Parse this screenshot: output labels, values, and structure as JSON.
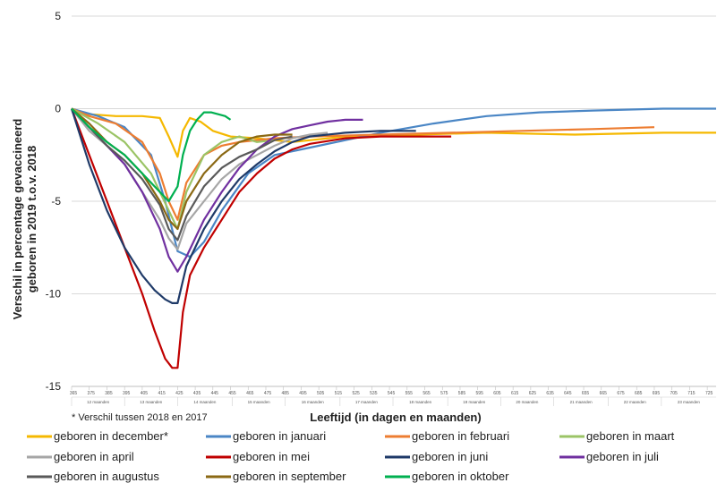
{
  "chart_data": {
    "type": "line",
    "ylabel_line1": "Verschil in percentage gevaccineerd",
    "ylabel_line2": "geboren in 2019 t.o.v. 2018",
    "xlabel": "Leeftijd (in dagen en maanden)",
    "footnote": "* Verschil tussen 2018 en 2017",
    "ylim": [
      -15,
      5
    ],
    "yticks": [
      5,
      0,
      -5,
      -10,
      -15
    ],
    "xlim": [
      365,
      730
    ],
    "day_ticks": [
      "365",
      "375",
      "385",
      "395",
      "405",
      "415",
      "425",
      "435",
      "445",
      "455",
      "465",
      "475",
      "485",
      "495",
      "505",
      "515",
      "525",
      "535",
      "545",
      "555",
      "565",
      "575",
      "585",
      "595",
      "605",
      "615",
      "625",
      "635",
      "645",
      "655",
      "665",
      "675",
      "685",
      "695",
      "705",
      "715",
      "725"
    ],
    "month_labels": [
      {
        "label": "12 maanden",
        "from": 365,
        "to": 395
      },
      {
        "label": "13 maanden",
        "from": 395,
        "to": 425
      },
      {
        "label": "14 maanden",
        "from": 425,
        "to": 456
      },
      {
        "label": "15 maanden",
        "from": 456,
        "to": 486
      },
      {
        "label": "16 maanden",
        "from": 486,
        "to": 517
      },
      {
        "label": "17 maanden",
        "from": 517,
        "to": 547
      },
      {
        "label": "18 maanden",
        "from": 547,
        "to": 578
      },
      {
        "label": "19 maanden",
        "from": 578,
        "to": 608
      },
      {
        "label": "20 maanden",
        "from": 608,
        "to": 638
      },
      {
        "label": "21 maanden",
        "from": 638,
        "to": 669
      },
      {
        "label": "22 maanden",
        "from": 669,
        "to": 699
      },
      {
        "label": "23 maanden",
        "from": 699,
        "to": 730
      }
    ],
    "grid": "horizontal",
    "legend_position": "bottom",
    "series": [
      {
        "name": "geboren in december*",
        "color": "#F5B800",
        "x": [
          365,
          375,
          390,
          405,
          415,
          420,
          425,
          428,
          432,
          438,
          445,
          455,
          470,
          490,
          520,
          560,
          600,
          650,
          700,
          730
        ],
        "y": [
          0,
          -0.3,
          -0.4,
          -0.4,
          -0.5,
          -1.5,
          -2.6,
          -1.2,
          -0.5,
          -0.7,
          -1.2,
          -1.5,
          -1.6,
          -1.8,
          -1.5,
          -1.4,
          -1.3,
          -1.4,
          -1.3,
          -1.3
        ]
      },
      {
        "name": "geboren in januari",
        "color": "#4A86C5",
        "x": [
          365,
          380,
          395,
          410,
          418,
          425,
          432,
          440,
          450,
          465,
          480,
          500,
          520,
          540,
          570,
          600,
          630,
          660,
          700,
          730
        ],
        "y": [
          0,
          -0.4,
          -1.0,
          -2.5,
          -5,
          -7.7,
          -8.0,
          -7.2,
          -5.5,
          -3.5,
          -2.5,
          -2.1,
          -1.7,
          -1.3,
          -0.8,
          -0.4,
          -0.2,
          -0.1,
          0,
          0
        ]
      },
      {
        "name": "geboren in februari",
        "color": "#ED7D31",
        "x": [
          365,
          375,
          390,
          405,
          415,
          420,
          425,
          430,
          440,
          450,
          460,
          480,
          500,
          540,
          580,
          620,
          660,
          695
        ],
        "y": [
          0,
          -0.4,
          -0.8,
          -1.8,
          -3.5,
          -5,
          -6,
          -4,
          -2.5,
          -2,
          -1.8,
          -1.6,
          -1.5,
          -1.4,
          -1.3,
          -1.2,
          -1.1,
          -1.0
        ]
      },
      {
        "name": "geboren in maart",
        "color": "#9BC466",
        "x": [
          365,
          380,
          395,
          410,
          420,
          425,
          430,
          440,
          450,
          460,
          470,
          480
        ],
        "y": [
          0,
          -0.8,
          -1.8,
          -3.5,
          -5.5,
          -6.5,
          -4.5,
          -2.5,
          -1.8,
          -1.5,
          -1.8,
          -1.7
        ]
      },
      {
        "name": "geboren in april",
        "color": "#A6A6A6",
        "x": [
          365,
          375,
          385,
          395,
          405,
          415,
          420,
          425,
          430,
          440,
          450,
          460,
          470,
          480,
          490,
          500,
          510
        ],
        "y": [
          0,
          -1.2,
          -2.0,
          -3.0,
          -4.5,
          -6.0,
          -7.0,
          -7.6,
          -6.2,
          -5.0,
          -3.8,
          -3.0,
          -2.5,
          -2.0,
          -1.6,
          -1.4,
          -1.3
        ]
      },
      {
        "name": "geboren in mei",
        "color": "#C00000",
        "x": [
          365,
          375,
          385,
          395,
          405,
          412,
          418,
          422,
          425,
          428,
          432,
          440,
          450,
          460,
          470,
          480,
          490,
          500,
          520,
          540,
          560,
          580
        ],
        "y": [
          0,
          -2.5,
          -5.0,
          -7.5,
          -10.0,
          -12.0,
          -13.5,
          -14.0,
          -14.0,
          -11,
          -9,
          -7.5,
          -6.0,
          -4.5,
          -3.5,
          -2.7,
          -2.2,
          -1.9,
          -1.6,
          -1.5,
          -1.5,
          -1.5
        ]
      },
      {
        "name": "geboren in juni",
        "color": "#1F3A68",
        "x": [
          365,
          375,
          385,
          395,
          405,
          412,
          418,
          422,
          425,
          430,
          440,
          450,
          460,
          470,
          480,
          490,
          500,
          520,
          540,
          560
        ],
        "y": [
          0,
          -3.0,
          -5.5,
          -7.5,
          -9.0,
          -9.8,
          -10.3,
          -10.5,
          -10.5,
          -8.5,
          -6.5,
          -5.0,
          -3.8,
          -3.0,
          -2.3,
          -1.8,
          -1.5,
          -1.3,
          -1.2,
          -1.2
        ]
      },
      {
        "name": "geboren in juli",
        "color": "#7030A0",
        "x": [
          365,
          375,
          385,
          395,
          405,
          415,
          420,
          425,
          430,
          440,
          450,
          460,
          470,
          480,
          490,
          500,
          510,
          520,
          530
        ],
        "y": [
          0,
          -1.0,
          -2.0,
          -3.0,
          -4.5,
          -6.5,
          -8.0,
          -8.8,
          -8.0,
          -6.0,
          -4.5,
          -3.2,
          -2.2,
          -1.5,
          -1.1,
          -0.9,
          -0.7,
          -0.6,
          -0.6
        ]
      },
      {
        "name": "geboren in augustus",
        "color": "#595959",
        "x": [
          365,
          375,
          385,
          395,
          405,
          415,
          420,
          425,
          430,
          440,
          450,
          460,
          470,
          480,
          490
        ],
        "y": [
          0,
          -1.0,
          -2.0,
          -2.8,
          -3.8,
          -5.2,
          -6.5,
          -7.1,
          -5.8,
          -4.2,
          -3.2,
          -2.6,
          -2.2,
          -1.7,
          -1.5
        ]
      },
      {
        "name": "geboren in september",
        "color": "#8B6914",
        "x": [
          365,
          375,
          385,
          395,
          405,
          415,
          420,
          425,
          430,
          440,
          450,
          460,
          470,
          480,
          490
        ],
        "y": [
          0,
          -0.8,
          -1.8,
          -2.5,
          -3.5,
          -5.0,
          -6.0,
          -6.5,
          -5.0,
          -3.5,
          -2.5,
          -1.8,
          -1.5,
          -1.4,
          -1.4
        ]
      },
      {
        "name": "geboren in oktober",
        "color": "#00B050",
        "x": [
          365,
          375,
          385,
          395,
          405,
          415,
          420,
          425,
          428,
          432,
          436,
          440,
          444,
          448,
          452,
          455
        ],
        "y": [
          0,
          -1.0,
          -1.8,
          -2.5,
          -3.5,
          -4.5,
          -5.0,
          -4.2,
          -2.5,
          -1.2,
          -0.6,
          -0.2,
          -0.2,
          -0.3,
          -0.4,
          -0.6
        ]
      }
    ]
  }
}
